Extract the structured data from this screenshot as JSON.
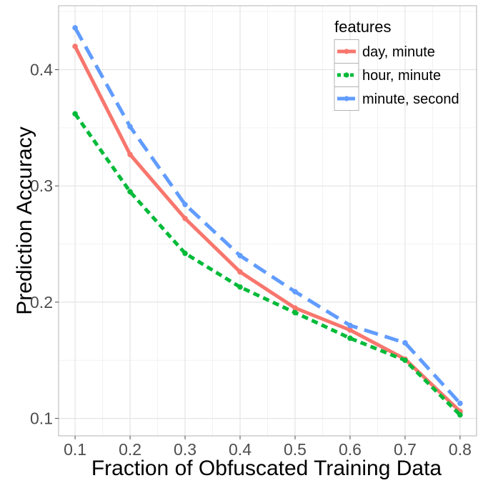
{
  "chart_data": {
    "type": "line",
    "title": "",
    "xlabel": "Fraction of Obfuscated Training Data",
    "ylabel": "Prediction Accuracy",
    "xlim": [
      0.07,
      0.83
    ],
    "ylim": [
      0.085,
      0.455
    ],
    "x": [
      0.1,
      0.2,
      0.3,
      0.4,
      0.5,
      0.6,
      0.7,
      0.8
    ],
    "x_tick_labels": [
      "0.1",
      "0.2",
      "0.3",
      "0.4",
      "0.5",
      "0.6",
      "0.7",
      "0.8"
    ],
    "y_ticks": [
      0.1,
      0.2,
      0.3,
      0.4
    ],
    "y_tick_labels": [
      "0.1",
      "0.2",
      "0.3",
      "0.4"
    ],
    "grid": true,
    "legend": {
      "title": "features",
      "placement": "top-right"
    },
    "series": [
      {
        "name": "day, minute",
        "color": "#F8766D",
        "dash": "solid",
        "values": [
          0.42,
          0.327,
          0.272,
          0.226,
          0.195,
          0.176,
          0.151,
          0.106
        ]
      },
      {
        "name": "hour, minute",
        "color": "#00BA38",
        "dash": "dotted",
        "values": [
          0.362,
          0.295,
          0.242,
          0.213,
          0.191,
          0.169,
          0.15,
          0.103
        ]
      },
      {
        "name": "minute, second",
        "color": "#619CFF",
        "dash": "dashed",
        "values": [
          0.436,
          0.351,
          0.284,
          0.24,
          0.209,
          0.18,
          0.165,
          0.113
        ]
      }
    ]
  }
}
